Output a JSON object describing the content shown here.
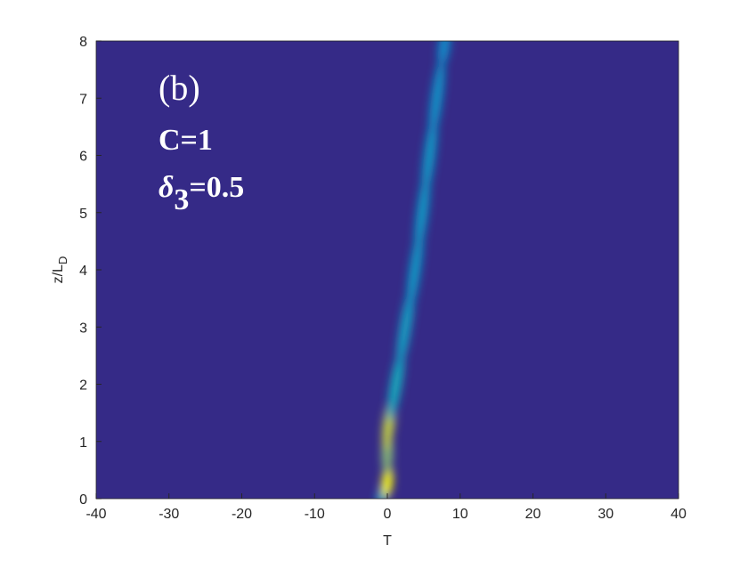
{
  "chart_data": {
    "type": "heatmap",
    "xlabel": "T",
    "ylabel": "z/L",
    "ylabel_sub": "D",
    "annotations": [
      "(b)",
      "C=1"
    ],
    "param": {
      "symbol": "δ",
      "sub": "3",
      "rest": "=0.5"
    },
    "xlim": [
      -40,
      40
    ],
    "xticks": [
      -40,
      -30,
      -20,
      -10,
      0,
      10,
      20,
      30,
      40
    ],
    "ylim": [
      0,
      8
    ],
    "yticks": [
      0,
      1,
      2,
      3,
      4,
      5,
      6,
      7,
      8
    ],
    "background": "#352a87",
    "colormap": [
      "#352a87",
      "#0a72d8",
      "#14b0c0",
      "#a5be64",
      "#f9fb0e"
    ],
    "ridge": {
      "z": [
        0.1,
        0.3,
        0.8,
        1.3,
        2,
        3,
        4,
        5,
        6,
        7,
        7.9
      ],
      "t": [
        -0.5,
        0,
        0,
        0.2,
        1.2,
        2.5,
        3.8,
        4.8,
        5.8,
        6.8,
        7.8
      ],
      "intensity": [
        0.45,
        1,
        0.7,
        0.85,
        0.5,
        0.45,
        0.42,
        0.42,
        0.42,
        0.4,
        0.38
      ]
    }
  }
}
